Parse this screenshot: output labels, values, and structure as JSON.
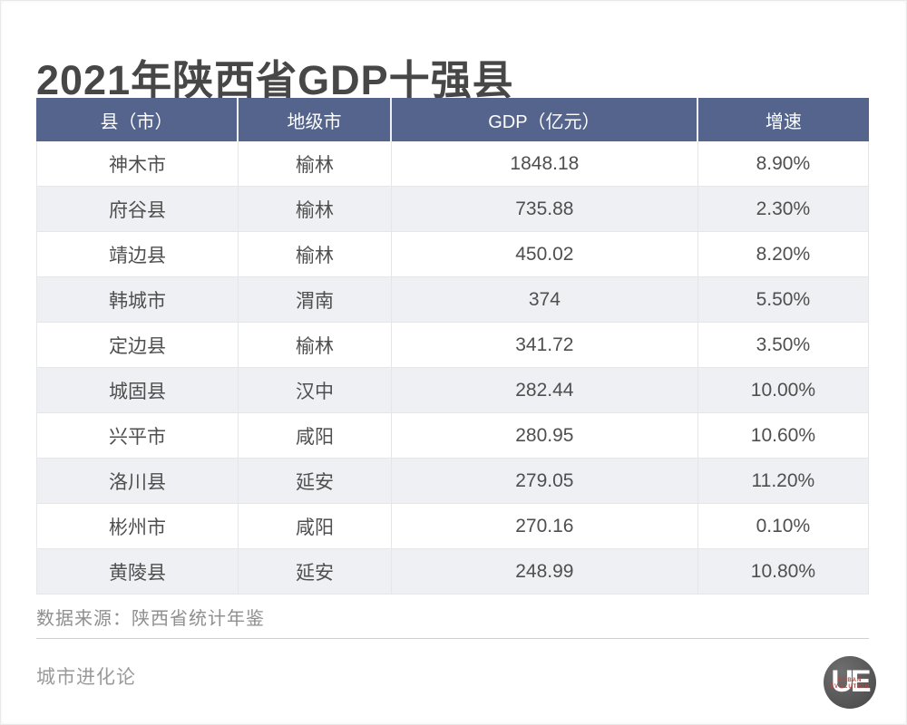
{
  "page": {
    "title": "2021年陕西省GDP十强县",
    "source_note": "数据来源：陕西省统计年鉴",
    "brand_name": "城市进化论",
    "logo": {
      "monogram": "UE",
      "sub_line1": "URBAN",
      "sub_line2": "EVOLUTION"
    }
  },
  "table": {
    "columns": [
      "县（市）",
      "地级市",
      "GDP（亿元）",
      "增速"
    ],
    "rows": [
      [
        "神木市",
        "榆林",
        "1848.18",
        "8.90%"
      ],
      [
        "府谷县",
        "榆林",
        "735.88",
        "2.30%"
      ],
      [
        "靖边县",
        "榆林",
        "450.02",
        "8.20%"
      ],
      [
        "韩城市",
        "渭南",
        "374",
        "5.50%"
      ],
      [
        "定边县",
        "榆林",
        "341.72",
        "3.50%"
      ],
      [
        "城固县",
        "汉中",
        "282.44",
        "10.00%"
      ],
      [
        "兴平市",
        "咸阳",
        "280.95",
        "10.60%"
      ],
      [
        "洛川县",
        "延安",
        "279.05",
        "11.20%"
      ],
      [
        "彬州市",
        "咸阳",
        "270.16",
        "0.10%"
      ],
      [
        "黄陵县",
        "延安",
        "248.99",
        "10.80%"
      ]
    ]
  },
  "colors": {
    "header_bg": "#54648c",
    "header_text": "#ffffff",
    "alt_row_bg": "#eef0f3",
    "body_text": "#4f4f4f",
    "title_text": "#474747",
    "muted_text": "#8f8f8f",
    "divider": "#cfcfcf",
    "logo_accent": "#b24a42"
  },
  "chart_data": {
    "type": "table",
    "title": "2021年陕西省GDP十强县",
    "columns": [
      "县（市）",
      "地级市",
      "GDP（亿元）",
      "增速"
    ],
    "counties": [
      "神木市",
      "府谷县",
      "靖边县",
      "韩城市",
      "定边县",
      "城固县",
      "兴平市",
      "洛川县",
      "彬州市",
      "黄陵县"
    ],
    "prefecture_cities": [
      "榆林",
      "榆林",
      "榆林",
      "渭南",
      "榆林",
      "汉中",
      "咸阳",
      "延安",
      "咸阳",
      "延安"
    ],
    "gdp_billion_yuan": [
      1848.18,
      735.88,
      450.02,
      374,
      341.72,
      282.44,
      280.95,
      279.05,
      270.16,
      248.99
    ],
    "growth_rate_pct": [
      8.9,
      2.3,
      8.2,
      5.5,
      3.5,
      10.0,
      10.6,
      11.2,
      0.1,
      10.8
    ],
    "source": "陕西省统计年鉴"
  }
}
